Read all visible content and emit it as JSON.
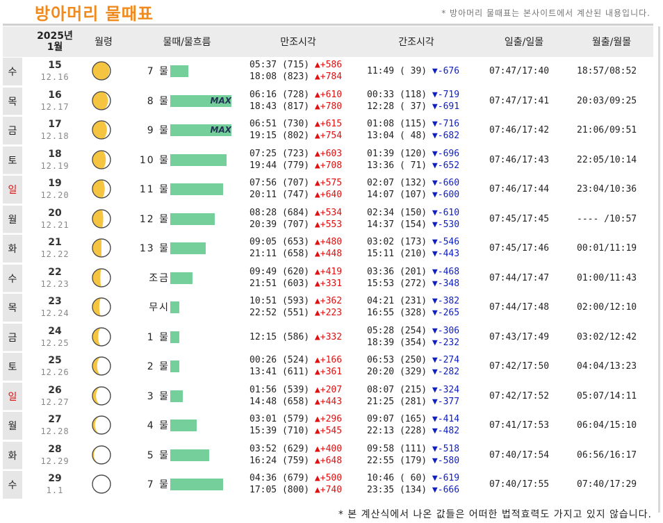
{
  "title": "방아머리 물때표",
  "subtitle": "* 방아머리 물때표는 본사이트에서 계산된 내용입니다.",
  "header": {
    "year_label": "2025년",
    "month_label": "1월",
    "moon": "월령",
    "tide": "물때/물흐름",
    "high": "만조시각",
    "low": "간조시각",
    "sun": "일출/일몰",
    "moonrise": "월출/월몰"
  },
  "colors": {
    "title": "#f08a1c",
    "bar": "#74cf9a",
    "up": "#e01010",
    "down": "#1020c0",
    "sunday": "#e01010"
  },
  "bar_max_label": "MAX",
  "rows": [
    {
      "day": "수",
      "solar": "15",
      "lunar": "12.16",
      "moon_phase": 0.53,
      "mul": "7 물",
      "flow": 0.29,
      "max": false,
      "high1": "05:37 (715) ",
      "high1_d": "▲+586",
      "high2": "18:08 (823) ",
      "high2_d": "▲+784",
      "low1": "11:49 ( 39) ",
      "low1_d": "▼-676",
      "low2": "",
      "low2_d": "",
      "sun": "07:47/17:40",
      "moontime": "18:57/08:52"
    },
    {
      "day": "목",
      "solar": "16",
      "lunar": "12.17",
      "moon_phase": 0.57,
      "mul": "8 물",
      "flow": 1.0,
      "max": true,
      "high1": "06:16 (728) ",
      "high1_d": "▲+610",
      "high2": "18:43 (817) ",
      "high2_d": "▲+780",
      "low1": "00:33 (118) ",
      "low1_d": "▼-719",
      "low2": "12:28 ( 37) ",
      "low2_d": "▼-691",
      "sun": "07:47/17:41",
      "moontime": "20:03/09:25"
    },
    {
      "day": "금",
      "solar": "17",
      "lunar": "12.18",
      "moon_phase": 0.6,
      "mul": "9 물",
      "flow": 1.0,
      "max": true,
      "high1": "06:51 (730) ",
      "high1_d": "▲+615",
      "high2": "19:15 (802) ",
      "high2_d": "▲+754",
      "low1": "01:08 (115) ",
      "low1_d": "▼-716",
      "low2": "13:04 ( 48) ",
      "low2_d": "▼-682",
      "sun": "07:46/17:42",
      "moontime": "21:06/09:51"
    },
    {
      "day": "토",
      "solar": "18",
      "lunar": "12.19",
      "moon_phase": 0.63,
      "mul": "10 물",
      "flow": 0.92,
      "max": false,
      "high1": "07:25 (723) ",
      "high1_d": "▲+603",
      "high2": "19:44 (779) ",
      "high2_d": "▲+708",
      "low1": "01:39 (120) ",
      "low1_d": "▼-696",
      "low2": "13:36 ( 71) ",
      "low2_d": "▼-652",
      "sun": "07:46/17:43",
      "moontime": "22:05/10:14"
    },
    {
      "day": "일",
      "solar": "19",
      "lunar": "12.20",
      "moon_phase": 0.66,
      "mul": "11 물",
      "flow": 0.86,
      "max": false,
      "high1": "07:56 (707) ",
      "high1_d": "▲+575",
      "high2": "20:11 (747) ",
      "high2_d": "▲+640",
      "low1": "02:07 (132) ",
      "low1_d": "▼-660",
      "low2": "14:07 (107) ",
      "low2_d": "▼-600",
      "sun": "07:46/17:44",
      "moontime": "23:04/10:36"
    },
    {
      "day": "월",
      "solar": "20",
      "lunar": "12.21",
      "moon_phase": 0.7,
      "mul": "12 물",
      "flow": 0.73,
      "max": false,
      "high1": "08:28 (684) ",
      "high1_d": "▲+534",
      "high2": "20:39 (707) ",
      "high2_d": "▲+553",
      "low1": "02:34 (150) ",
      "low1_d": "▼-610",
      "low2": "14:37 (154) ",
      "low2_d": "▼-530",
      "sun": "07:45/17:45",
      "moontime": "---- /10:57"
    },
    {
      "day": "화",
      "solar": "21",
      "lunar": "12.22",
      "moon_phase": 0.75,
      "mul": "13 물",
      "flow": 0.58,
      "max": false,
      "high1": "09:05 (653) ",
      "high1_d": "▲+480",
      "high2": "21:11 (658) ",
      "high2_d": "▲+448",
      "low1": "03:02 (173) ",
      "low1_d": "▼-546",
      "low2": "15:11 (210) ",
      "low2_d": "▼-443",
      "sun": "07:45/17:46",
      "moontime": "00:01/11:19"
    },
    {
      "day": "수",
      "solar": "22",
      "lunar": "12.23",
      "moon_phase": 0.78,
      "mul": "조금",
      "flow": 0.36,
      "max": false,
      "high1": "09:49 (620) ",
      "high1_d": "▲+419",
      "high2": "21:51 (603) ",
      "high2_d": "▲+331",
      "low1": "03:36 (201) ",
      "low1_d": "▼-468",
      "low2": "15:53 (272) ",
      "low2_d": "▼-348",
      "sun": "07:44/17:47",
      "moontime": "01:00/11:43"
    },
    {
      "day": "목",
      "solar": "23",
      "lunar": "12.24",
      "moon_phase": 0.81,
      "mul": "무시",
      "flow": 0.15,
      "max": false,
      "high1": "10:51 (593) ",
      "high1_d": "▲+362",
      "high2": "22:52 (551) ",
      "high2_d": "▲+223",
      "low1": "04:21 (231) ",
      "low1_d": "▼-382",
      "low2": "16:55 (328) ",
      "low2_d": "▼-265",
      "sun": "07:44/17:48",
      "moontime": "02:00/12:10"
    },
    {
      "day": "금",
      "solar": "24",
      "lunar": "12.25",
      "moon_phase": 0.84,
      "mul": "1 물",
      "flow": 0.15,
      "max": false,
      "high1": "12:15 (586) ",
      "high1_d": "▲+332",
      "high2": "",
      "high2_d": "",
      "low1": "05:28 (254) ",
      "low1_d": "▼-306",
      "low2": "18:39 (354) ",
      "low2_d": "▼-232",
      "sun": "07:43/17:49",
      "moontime": "03:02/12:42"
    },
    {
      "day": "토",
      "solar": "25",
      "lunar": "12.26",
      "moon_phase": 0.87,
      "mul": "2 물",
      "flow": 0.15,
      "max": false,
      "high1": "00:26 (524) ",
      "high1_d": "▲+166",
      "high2": "13:41 (611) ",
      "high2_d": "▲+361",
      "low1": "06:53 (250) ",
      "low1_d": "▼-274",
      "low2": "20:20 (329) ",
      "low2_d": "▼-282",
      "sun": "07:42/17:50",
      "moontime": "04:04/13:23"
    },
    {
      "day": "일",
      "solar": "26",
      "lunar": "12.27",
      "moon_phase": 0.9,
      "mul": "3 물",
      "flow": 0.21,
      "max": false,
      "high1": "01:56 (539) ",
      "high1_d": "▲+207",
      "high2": "14:48 (658) ",
      "high2_d": "▲+443",
      "low1": "08:07 (215) ",
      "low1_d": "▼-324",
      "low2": "21:25 (281) ",
      "low2_d": "▼-377",
      "sun": "07:42/17:52",
      "moontime": "05:07/14:11"
    },
    {
      "day": "월",
      "solar": "27",
      "lunar": "12.28",
      "moon_phase": 0.93,
      "mul": "4 물",
      "flow": 0.43,
      "max": false,
      "high1": "03:01 (579) ",
      "high1_d": "▲+296",
      "high2": "15:39 (710) ",
      "high2_d": "▲+545",
      "low1": "09:07 (165) ",
      "low1_d": "▼-414",
      "low2": "22:13 (228) ",
      "low2_d": "▼-482",
      "sun": "07:41/17:53",
      "moontime": "06:04/15:10"
    },
    {
      "day": "화",
      "solar": "28",
      "lunar": "12.29",
      "moon_phase": 0.96,
      "mul": "5 물",
      "flow": 0.64,
      "max": false,
      "high1": "03:52 (629) ",
      "high1_d": "▲+400",
      "high2": "16:24 (759) ",
      "high2_d": "▲+648",
      "low1": "09:58 (111) ",
      "low1_d": "▼-518",
      "low2": "22:55 (179) ",
      "low2_d": "▼-580",
      "sun": "07:40/17:54",
      "moontime": "06:56/16:17"
    },
    {
      "day": "수",
      "solar": "29",
      "lunar": "1.1",
      "moon_phase": 0.99,
      "mul": "7 물",
      "flow": 0.86,
      "max": false,
      "high1": "04:36 (679) ",
      "high1_d": "▲+500",
      "high2": "17:05 (800) ",
      "high2_d": "▲+740",
      "low1": "10:46 ( 60) ",
      "low1_d": "▼-619",
      "low2": "23:35 (134) ",
      "low2_d": "▼-666",
      "sun": "07:40/17:55",
      "moontime": "07:40/17:29"
    }
  ],
  "footer": "* 본 계산식에서 나온 값들은 어떠한 법적효력도 가지고 있지 않습니다."
}
